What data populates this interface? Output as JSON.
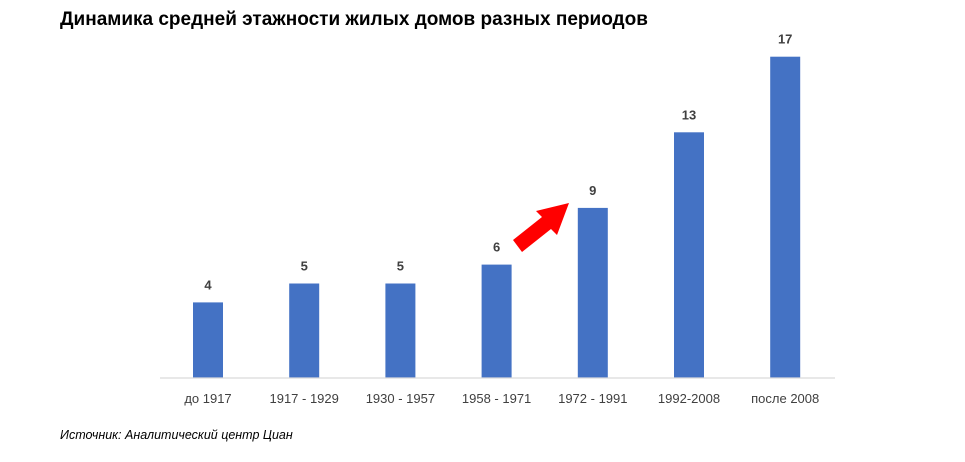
{
  "title": "Динамика средней этажности жилых домов разных периодов",
  "source": "Источник: Аналитический центр Циан",
  "colors": {
    "bar": "#4472C4",
    "axis": "#D9D9D9",
    "label": "#404040",
    "arrow": "#FF0000"
  },
  "chart_data": {
    "type": "bar",
    "categories": [
      "до 1917",
      "1917 - 1929",
      "1930 - 1957",
      "1958 - 1971",
      "1972 - 1991",
      "1992-2008",
      "после 2008"
    ],
    "values": [
      4,
      5,
      5,
      6,
      9,
      13,
      17
    ],
    "data_labels": [
      "4",
      "5",
      "5",
      "6",
      "9",
      "13",
      "17"
    ],
    "title": "Динамика средней этажности жилых домов разных периодов",
    "xlabel": "",
    "ylabel": "",
    "grid": false,
    "legend": "none",
    "annotations": [
      {
        "type": "arrow",
        "icon": "red-arrow-icon",
        "pointing_to": "1972 - 1991"
      }
    ]
  }
}
